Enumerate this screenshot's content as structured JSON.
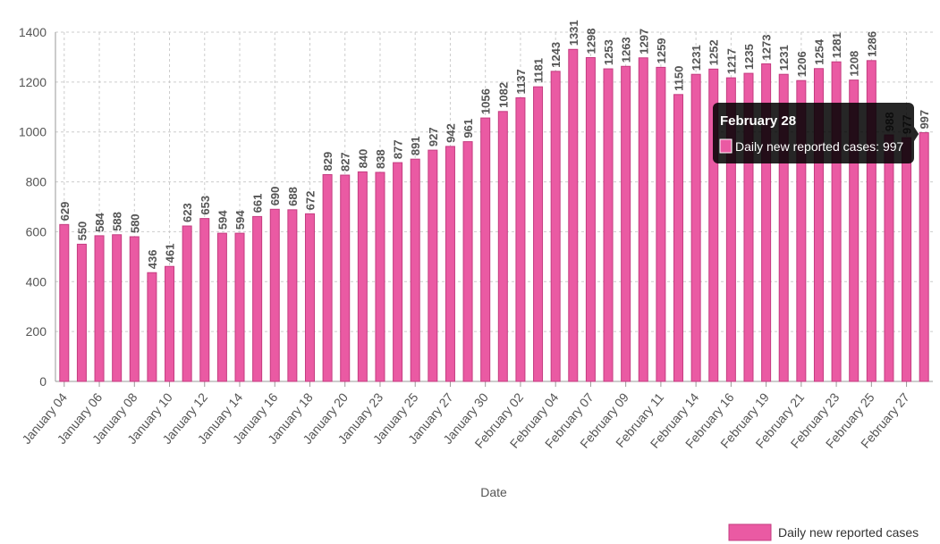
{
  "chart_data": {
    "type": "bar",
    "x_label": "Date",
    "categories": [
      "January 04",
      null,
      "January 06",
      null,
      "January 08",
      null,
      "January 10",
      null,
      "January 12",
      null,
      "January 14",
      null,
      "January 16",
      null,
      "January 18",
      null,
      "January 20",
      null,
      "January 23",
      null,
      "January 25",
      null,
      "January 27",
      null,
      "January 30",
      null,
      "February 02",
      null,
      "February 04",
      null,
      "February 07",
      null,
      "February 09",
      null,
      "February 11",
      null,
      "February 14",
      null,
      "February 16",
      null,
      "February 19",
      null,
      "February 21",
      null,
      "February 23",
      null,
      "February 25",
      null,
      "February 27",
      null
    ],
    "series": [
      {
        "name": "Daily new reported cases",
        "color": "#ea5aa3",
        "values": [
          629,
          550,
          584,
          588,
          580,
          436,
          461,
          623,
          653,
          594,
          594,
          661,
          690,
          688,
          672,
          829,
          827,
          840,
          838,
          877,
          891,
          927,
          942,
          961,
          1056,
          1082,
          1137,
          1181,
          1243,
          1331,
          1298,
          1253,
          1263,
          1297,
          1259,
          1150,
          1231,
          1252,
          1217,
          1235,
          1273,
          1231,
          1206,
          1254,
          1281,
          1208,
          1286,
          988,
          977,
          997
        ]
      }
    ],
    "ylim": [
      0,
      1400
    ],
    "yticks": [
      0,
      200,
      400,
      600,
      800,
      1000,
      1200,
      1400
    ],
    "grid": true,
    "legend": "bottom-right",
    "tooltip": {
      "title": "February 28",
      "label": "Daily new reported cases: 997"
    }
  }
}
